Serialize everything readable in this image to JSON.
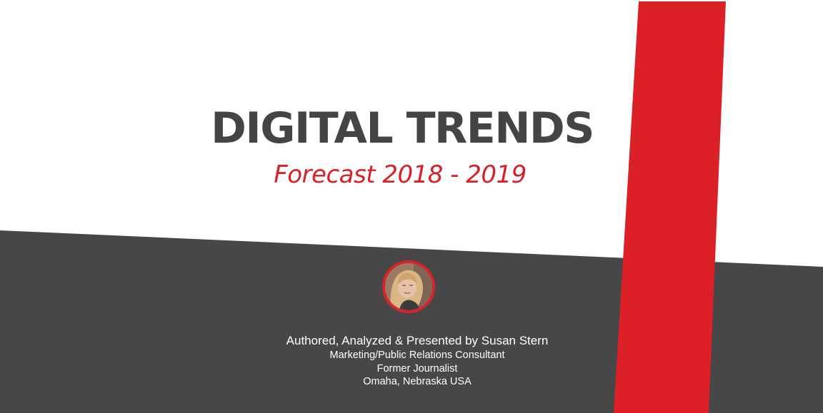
{
  "slide": {
    "title": "DIGITAL TRENDS",
    "subtitle": "Forecast 2018 - 2019",
    "author": {
      "line1": "Authored, Analyzed & Presented by Susan Stern",
      "line2": "Marketing/Public Relations Consultant",
      "line3": "Former Journalist",
      "line4": "Omaha, Nebraska USA"
    }
  },
  "colors": {
    "accent_red": "#db2028",
    "dark_band": "#474747",
    "title_gray": "#444444",
    "background": "#ffffff"
  },
  "icons": {
    "portrait": "portrait-photo"
  }
}
